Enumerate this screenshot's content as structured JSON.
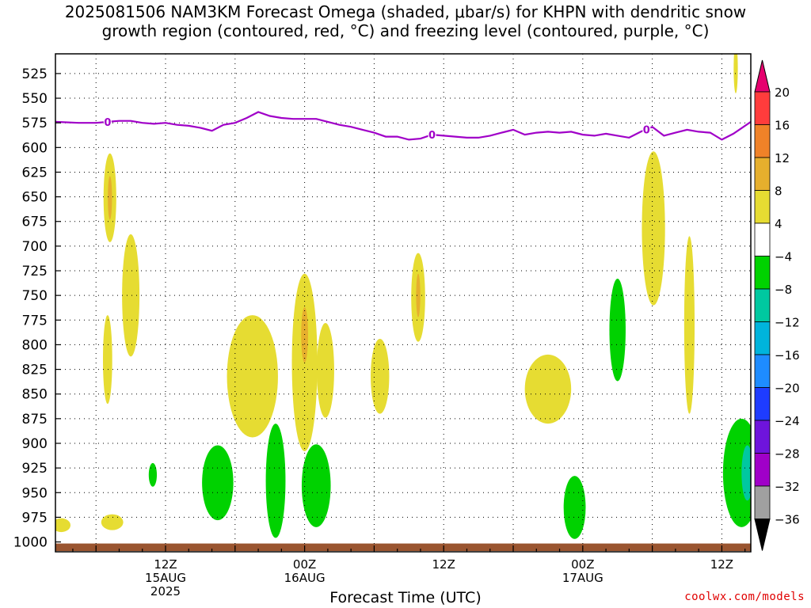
{
  "title_line1": "2025081506 NAM3KM Forecast Omega (shaded, μbar/s) for KHPN with dendritic snow",
  "title_line2": "growth region (contoured, red, °C) and freezing level (contoured, purple, °C)",
  "credit": "coolwx.com/models",
  "colors": {
    "freezing_line": "#a000c8",
    "ground": "#9a5530",
    "omega_4_8": "#e6dc32",
    "omega_8_12": "#e6af2d",
    "omega_neg4_neg8": "#00d200",
    "omega_neg8_neg12": "#00c8a0"
  },
  "chart_data": {
    "type": "heatmap",
    "title": "2025081506 NAM3KM Forecast Omega (shaded, μbar/s) for KHPN with dendritic snow growth region (contoured, red, °C) and freezing level (contoured, purple, °C)",
    "xlabel": "Forecast Time (UTC)",
    "ylabel": "",
    "x_range_hours": [
      -3.5,
      56.5
    ],
    "y_range_hpa": [
      505,
      1010
    ],
    "y_ticks": [
      525,
      550,
      575,
      600,
      625,
      650,
      675,
      700,
      725,
      750,
      775,
      800,
      825,
      850,
      875,
      900,
      925,
      950,
      975,
      1000
    ],
    "x_ticks": [
      {
        "hour": 6,
        "label": "12Z",
        "label2": "15AUG",
        "label3": "2025"
      },
      {
        "hour": 18,
        "label": "00Z",
        "label2": "16AUG",
        "label3": ""
      },
      {
        "hour": 30,
        "label": "12Z",
        "label2": "",
        "label3": ""
      },
      {
        "hour": 42,
        "label": "00Z",
        "label2": "17AUG",
        "label3": ""
      },
      {
        "hour": 54,
        "label": "12Z",
        "label2": "",
        "label3": ""
      }
    ],
    "grid": true,
    "colorbar": {
      "position": "right",
      "labels": [
        "20",
        "16",
        "12",
        "8",
        "4",
        "−4",
        "−8",
        "−12",
        "−16",
        "−20",
        "−24",
        "−28",
        "−32",
        "−36"
      ],
      "colors": [
        "#e6006e",
        "#ff3c3c",
        "#f08228",
        "#e6af2d",
        "#e6dc32",
        "#ffffff",
        "#00d200",
        "#00c8a0",
        "#00b4dc",
        "#1e8cff",
        "#1e3cff",
        "#6e14dc",
        "#a000c8",
        "#a0a0a0",
        "#000000"
      ]
    },
    "freezing_level": {
      "label": "0",
      "label_hours": [
        1.0,
        29.0,
        47.5
      ],
      "hours": [
        -3.5,
        -1.5,
        0,
        1,
        2,
        3,
        4,
        5,
        6,
        7,
        8,
        9,
        10,
        11,
        12,
        13,
        14,
        15,
        16,
        17,
        18,
        19,
        20,
        21,
        22,
        23,
        24,
        25,
        26,
        27,
        28,
        29,
        30,
        31,
        32,
        33,
        34,
        35,
        36,
        37,
        38,
        39,
        40,
        41,
        42,
        43,
        44,
        45,
        46,
        47,
        48,
        49,
        50,
        51,
        52,
        53,
        54,
        55,
        56.5
      ],
      "pressure_hpa": [
        574,
        575,
        575,
        574,
        573,
        573,
        575,
        576,
        575,
        577,
        578,
        580,
        583,
        577,
        575,
        570,
        564,
        568,
        570,
        571,
        571,
        571,
        574,
        577,
        579,
        582,
        585,
        589,
        589,
        592,
        591,
        587,
        588,
        589,
        590,
        590,
        588,
        585,
        582,
        587,
        585,
        584,
        585,
        584,
        587,
        588,
        586,
        588,
        590,
        584,
        579,
        588,
        585,
        582,
        584,
        585,
        592,
        586,
        574
      ]
    },
    "omega_regions": [
      {
        "category": "4 to 8",
        "center_hour": 1.2,
        "center_hpa": 651,
        "half_width_hours": 0.55,
        "half_depth_hpa": 45
      },
      {
        "category": "8 to 12",
        "center_hour": 1.2,
        "center_hpa": 651,
        "half_width_hours": 0.18,
        "half_depth_hpa": 22
      },
      {
        "category": "4 to 8",
        "center_hour": 3.0,
        "center_hpa": 750,
        "half_width_hours": 0.75,
        "half_depth_hpa": 62
      },
      {
        "category": "4 to 8",
        "center_hour": 1.0,
        "center_hpa": 815,
        "half_width_hours": 0.4,
        "half_depth_hpa": 45
      },
      {
        "category": "4 to 8",
        "center_hour": 13.5,
        "center_hpa": 832,
        "half_width_hours": 2.2,
        "half_depth_hpa": 62
      },
      {
        "category": "4 to 8",
        "center_hour": 18.0,
        "center_hpa": 818,
        "half_width_hours": 1.1,
        "half_depth_hpa": 90
      },
      {
        "category": "8 to 12",
        "center_hour": 18.0,
        "center_hpa": 790,
        "half_width_hours": 0.3,
        "half_depth_hpa": 28
      },
      {
        "category": "4 to 8",
        "center_hour": 19.8,
        "center_hpa": 826,
        "half_width_hours": 0.75,
        "half_depth_hpa": 48
      },
      {
        "category": "4 to 8",
        "center_hour": 24.5,
        "center_hpa": 832,
        "half_width_hours": 0.8,
        "half_depth_hpa": 38
      },
      {
        "category": "4 to 8",
        "center_hour": 27.8,
        "center_hpa": 752,
        "half_width_hours": 0.6,
        "half_depth_hpa": 45
      },
      {
        "category": "8 to 12",
        "center_hour": 27.8,
        "center_hpa": 750,
        "half_width_hours": 0.18,
        "half_depth_hpa": 22
      },
      {
        "category": "4 to 8",
        "center_hour": 39.0,
        "center_hpa": 845,
        "half_width_hours": 2.0,
        "half_depth_hpa": 35
      },
      {
        "category": "4 to 8",
        "center_hour": 48.1,
        "center_hpa": 682,
        "half_width_hours": 1.0,
        "half_depth_hpa": 78
      },
      {
        "category": "4 to 8",
        "center_hour": 51.2,
        "center_hpa": 780,
        "half_width_hours": 0.45,
        "half_depth_hpa": 90
      },
      {
        "category": "4 to 8",
        "center_hour": 55.2,
        "center_hpa": 520,
        "half_width_hours": 0.18,
        "half_depth_hpa": 25
      },
      {
        "category": "4 to 8",
        "center_hour": -3.0,
        "center_hpa": 983,
        "half_width_hours": 0.8,
        "half_depth_hpa": 7
      },
      {
        "category": "4 to 8",
        "center_hour": 1.4,
        "center_hpa": 980,
        "half_width_hours": 0.95,
        "half_depth_hpa": 8
      },
      {
        "category": "-4 to -8",
        "center_hour": 4.9,
        "center_hpa": 932,
        "half_width_hours": 0.35,
        "half_depth_hpa": 12
      },
      {
        "category": "-4 to -8",
        "center_hour": 10.5,
        "center_hpa": 940,
        "half_width_hours": 1.35,
        "half_depth_hpa": 38
      },
      {
        "category": "-4 to -8",
        "center_hour": 15.5,
        "center_hpa": 938,
        "half_width_hours": 0.85,
        "half_depth_hpa": 58
      },
      {
        "category": "-4 to -8",
        "center_hour": 19.0,
        "center_hpa": 943,
        "half_width_hours": 1.25,
        "half_depth_hpa": 42
      },
      {
        "category": "-4 to -8",
        "center_hour": 41.3,
        "center_hpa": 965,
        "half_width_hours": 0.95,
        "half_depth_hpa": 32
      },
      {
        "category": "-4 to -8",
        "center_hour": 45.0,
        "center_hpa": 785,
        "half_width_hours": 0.7,
        "half_depth_hpa": 52
      },
      {
        "category": "-4 to -8",
        "center_hour": 55.7,
        "center_hpa": 930,
        "half_width_hours": 1.6,
        "half_depth_hpa": 55
      },
      {
        "category": "-8 to -12",
        "center_hour": 56.2,
        "center_hpa": 930,
        "half_width_hours": 0.5,
        "half_depth_hpa": 28
      }
    ]
  }
}
